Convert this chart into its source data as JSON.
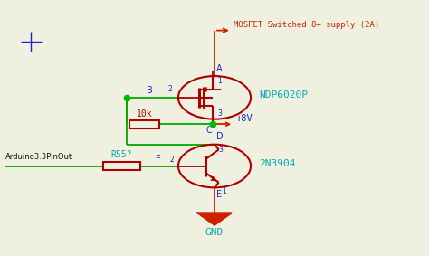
{
  "bg_color": "#f0f0e0",
  "wire_green": "#00aa00",
  "wire_red": "#cc2200",
  "comp_red": "#aa0000",
  "text_blue": "#2222cc",
  "text_cyan": "#00aaaa",
  "title": "MOSFET Switched 8+ supply (2A)",
  "label_mosfet": "NDP6020P",
  "label_bjt": "2N3904",
  "label_10k": "10k",
  "label_r55": "R55?",
  "label_8v": "+8V",
  "label_gnd": "GND",
  "label_arduino": "Arduino3.3PinOut",
  "mx": 0.5,
  "my": 0.62,
  "bx": 0.5,
  "by": 0.35,
  "mosfet_r": 0.085,
  "bjt_r": 0.085
}
